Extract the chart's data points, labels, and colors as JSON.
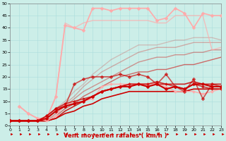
{
  "xlabel": "Vent moyen/en rafales ( km/h )",
  "xlim": [
    0,
    23
  ],
  "ylim": [
    0,
    50
  ],
  "xticks": [
    0,
    1,
    2,
    3,
    4,
    5,
    6,
    7,
    8,
    9,
    10,
    11,
    12,
    13,
    14,
    15,
    16,
    17,
    18,
    19,
    20,
    21,
    22,
    23
  ],
  "yticks": [
    0,
    5,
    10,
    15,
    20,
    25,
    30,
    35,
    40,
    45,
    50
  ],
  "bg_color": "#cceee8",
  "grid_color": "#aadddd",
  "series": [
    {
      "x": [
        0,
        1,
        2,
        3,
        4,
        5,
        6,
        7,
        8,
        9,
        10,
        11,
        12,
        13,
        14,
        15,
        16,
        17,
        18,
        19,
        20,
        21,
        22,
        23
      ],
      "y": [
        2,
        2,
        2,
        2,
        2,
        3,
        5,
        6,
        8,
        9,
        11,
        12,
        13,
        14,
        14,
        14,
        14,
        14,
        14,
        14,
        15,
        15,
        15,
        15
      ],
      "color": "#cc0000",
      "lw": 1.2,
      "marker": null,
      "ms": 0,
      "alpha": 1.0,
      "zorder": 2
    },
    {
      "x": [
        0,
        1,
        2,
        3,
        4,
        5,
        6,
        7,
        8,
        9,
        10,
        11,
        12,
        13,
        14,
        15,
        16,
        17,
        18,
        19,
        20,
        21,
        22,
        23
      ],
      "y": [
        2,
        2,
        2,
        2,
        2,
        3,
        6,
        8,
        10,
        12,
        14,
        15,
        16,
        17,
        17,
        17,
        17,
        17,
        17,
        17,
        18,
        17,
        17,
        17
      ],
      "color": "#cc0000",
      "lw": 1.2,
      "marker": null,
      "ms": 0,
      "alpha": 0.85,
      "zorder": 2
    },
    {
      "x": [
        0,
        1,
        2,
        3,
        4,
        5,
        6,
        7,
        8,
        9,
        10,
        11,
        12,
        13,
        14,
        15,
        16,
        17,
        18,
        19,
        20,
        21,
        22,
        23
      ],
      "y": [
        2,
        2,
        2,
        2,
        2,
        4,
        7,
        9,
        12,
        14,
        16,
        18,
        20,
        21,
        22,
        22,
        23,
        23,
        24,
        25,
        25,
        26,
        27,
        28
      ],
      "color": "#cc0000",
      "lw": 1.0,
      "marker": null,
      "ms": 0,
      "alpha": 0.55,
      "zorder": 2
    },
    {
      "x": [
        0,
        1,
        2,
        3,
        4,
        5,
        6,
        7,
        8,
        9,
        10,
        11,
        12,
        13,
        14,
        15,
        16,
        17,
        18,
        19,
        20,
        21,
        22,
        23
      ],
      "y": [
        2,
        2,
        2,
        2,
        2,
        5,
        8,
        11,
        14,
        16,
        18,
        20,
        22,
        24,
        26,
        27,
        28,
        28,
        29,
        29,
        30,
        30,
        31,
        31
      ],
      "color": "#cc0000",
      "lw": 1.0,
      "marker": null,
      "ms": 0,
      "alpha": 0.38,
      "zorder": 2
    },
    {
      "x": [
        0,
        1,
        2,
        3,
        4,
        5,
        6,
        7,
        8,
        9,
        10,
        11,
        12,
        13,
        14,
        15,
        16,
        17,
        18,
        19,
        20,
        21,
        22,
        23
      ],
      "y": [
        2,
        2,
        2,
        2,
        3,
        6,
        9,
        12,
        16,
        19,
        22,
        24,
        26,
        28,
        30,
        31,
        32,
        32,
        32,
        33,
        34,
        34,
        34,
        34
      ],
      "color": "#cc0000",
      "lw": 1.0,
      "marker": null,
      "ms": 0,
      "alpha": 0.28,
      "zorder": 2
    },
    {
      "x": [
        0,
        1,
        2,
        3,
        4,
        5,
        6,
        7,
        8,
        9,
        10,
        11,
        12,
        13,
        14,
        15,
        16,
        17,
        18,
        19,
        20,
        21,
        22,
        23
      ],
      "y": [
        2,
        2,
        2,
        2,
        3,
        7,
        10,
        14,
        17,
        21,
        24,
        27,
        29,
        31,
        33,
        33,
        33,
        34,
        35,
        35,
        36,
        36,
        36,
        35
      ],
      "color": "#cc0000",
      "lw": 1.0,
      "marker": null,
      "ms": 0,
      "alpha": 0.2,
      "zorder": 2
    },
    {
      "x": [
        0,
        1,
        2,
        3,
        4,
        5,
        6,
        7,
        8,
        9,
        10,
        11,
        12,
        13,
        14,
        15,
        16,
        17,
        18,
        19,
        20,
        21,
        22,
        23
      ],
      "y": [
        2,
        2,
        2,
        2,
        3,
        6,
        8,
        9,
        10,
        12,
        14,
        15,
        16,
        16,
        17,
        16,
        17,
        15,
        16,
        15,
        17,
        17,
        16,
        16
      ],
      "color": "#cc0000",
      "lw": 1.5,
      "marker": "D",
      "ms": 2.5,
      "alpha": 1.0,
      "zorder": 4
    },
    {
      "x": [
        0,
        1,
        2,
        3,
        4,
        5,
        6,
        7,
        8,
        9,
        10,
        11,
        12,
        13,
        14,
        15,
        16,
        17,
        18,
        19,
        20,
        21,
        22,
        23
      ],
      "y": [
        2,
        2,
        2,
        2,
        4,
        7,
        9,
        10,
        11,
        12,
        14,
        15,
        16,
        17,
        17,
        17,
        18,
        17,
        16,
        15,
        17,
        16,
        15,
        15
      ],
      "color": "#cc0000",
      "lw": 1.2,
      "marker": "D",
      "ms": 2.0,
      "alpha": 0.75,
      "zorder": 4
    },
    {
      "x": [
        0,
        1,
        2,
        3,
        4,
        5,
        6,
        7,
        8,
        9,
        10,
        11,
        12,
        13,
        14,
        15,
        16,
        17,
        18,
        19,
        20,
        21,
        22,
        23
      ],
      "y": [
        2,
        2,
        2,
        2,
        4,
        7,
        8,
        17,
        19,
        20,
        20,
        20,
        21,
        20,
        21,
        20,
        17,
        21,
        16,
        14,
        19,
        11,
        17,
        16
      ],
      "color": "#cc0000",
      "lw": 1.2,
      "marker": "D",
      "ms": 2.5,
      "alpha": 0.65,
      "zorder": 4
    },
    {
      "x": [
        1,
        2,
        3,
        4,
        5,
        6,
        7,
        8,
        9,
        10,
        11,
        12,
        13,
        14,
        15,
        16,
        17,
        18,
        19,
        20,
        21,
        22,
        23
      ],
      "y": [
        8,
        5,
        3,
        2,
        4,
        9,
        9,
        10,
        11,
        16,
        17,
        17,
        17,
        17,
        17,
        17,
        16,
        14,
        14,
        14,
        13,
        14,
        15
      ],
      "color": "#ffaaaa",
      "lw": 1.0,
      "marker": "D",
      "ms": 2.0,
      "alpha": 1.0,
      "zorder": 3
    },
    {
      "x": [
        1,
        2,
        3,
        4,
        5,
        6,
        7,
        8,
        9,
        10,
        11,
        12,
        13,
        14,
        15,
        16,
        17,
        18,
        19,
        20,
        21,
        22,
        23
      ],
      "y": [
        8,
        5,
        3,
        3,
        12,
        41,
        40,
        39,
        48,
        48,
        47,
        48,
        48,
        48,
        48,
        43,
        44,
        48,
        46,
        40,
        46,
        45,
        45
      ],
      "color": "#ffaaaa",
      "lw": 1.2,
      "marker": "D",
      "ms": 2.5,
      "alpha": 1.0,
      "zorder": 3
    },
    {
      "x": [
        1,
        2,
        3,
        4,
        5,
        6,
        7,
        8,
        9,
        10,
        11,
        12,
        13,
        14,
        15,
        16,
        17,
        18,
        19,
        20,
        21,
        22,
        23
      ],
      "y": [
        8,
        5,
        3,
        3,
        12,
        42,
        40,
        42,
        43,
        43,
        43,
        43,
        43,
        43,
        43,
        42,
        42,
        45,
        45,
        45,
        45,
        31,
        32
      ],
      "color": "#ffaaaa",
      "lw": 1.0,
      "marker": null,
      "ms": 0,
      "alpha": 0.7,
      "zorder": 3
    }
  ]
}
